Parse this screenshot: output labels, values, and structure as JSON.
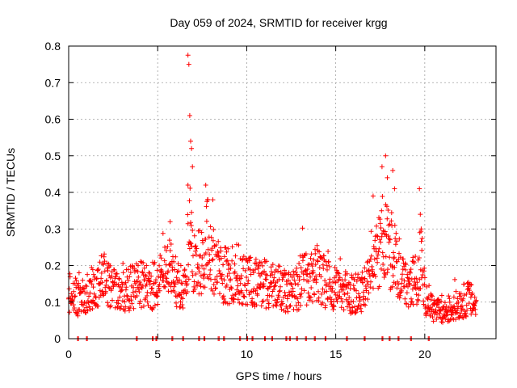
{
  "chart_data": {
    "type": "scatter",
    "title": "Day 059 of 2024, SRMTID for receiver krgg",
    "xlabel": "GPS time / hours",
    "ylabel": "SRMTID / TECUs",
    "xlim": [
      0,
      24
    ],
    "ylim": [
      0,
      0.8
    ],
    "xticks": [
      0,
      5,
      10,
      15,
      20
    ],
    "yticks": [
      0,
      0.1,
      0.2,
      0.3,
      0.4,
      0.5,
      0.6,
      0.7,
      0.8
    ],
    "grid": true,
    "marker": "+",
    "color": "#ff0000",
    "series": [
      {
        "name": "SRMTID",
        "trend": [
          [
            0.0,
            0.13
          ],
          [
            0.5,
            0.11
          ],
          [
            1.0,
            0.12
          ],
          [
            1.5,
            0.15
          ],
          [
            2.0,
            0.16
          ],
          [
            2.5,
            0.14
          ],
          [
            3.0,
            0.13
          ],
          [
            3.5,
            0.14
          ],
          [
            4.0,
            0.15
          ],
          [
            4.5,
            0.14
          ],
          [
            5.0,
            0.15
          ],
          [
            5.5,
            0.2
          ],
          [
            6.0,
            0.16
          ],
          [
            6.5,
            0.13
          ],
          [
            6.8,
            0.3
          ],
          [
            7.0,
            0.22
          ],
          [
            7.5,
            0.2
          ],
          [
            7.8,
            0.28
          ],
          [
            8.0,
            0.22
          ],
          [
            8.5,
            0.18
          ],
          [
            9.0,
            0.17
          ],
          [
            9.5,
            0.18
          ],
          [
            10.0,
            0.15
          ],
          [
            10.5,
            0.16
          ],
          [
            11.0,
            0.15
          ],
          [
            11.5,
            0.14
          ],
          [
            12.0,
            0.14
          ],
          [
            12.5,
            0.12
          ],
          [
            13.0,
            0.15
          ],
          [
            13.5,
            0.17
          ],
          [
            14.0,
            0.17
          ],
          [
            14.5,
            0.15
          ],
          [
            15.0,
            0.13
          ],
          [
            15.5,
            0.13
          ],
          [
            16.0,
            0.12
          ],
          [
            16.5,
            0.13
          ],
          [
            17.0,
            0.17
          ],
          [
            17.5,
            0.25
          ],
          [
            17.8,
            0.3
          ],
          [
            18.0,
            0.23
          ],
          [
            18.3,
            0.27
          ],
          [
            18.5,
            0.2
          ],
          [
            19.0,
            0.14
          ],
          [
            19.5,
            0.16
          ],
          [
            19.8,
            0.22
          ],
          [
            20.0,
            0.12
          ],
          [
            20.5,
            0.08
          ],
          [
            21.0,
            0.07
          ],
          [
            21.5,
            0.08
          ],
          [
            22.0,
            0.1
          ],
          [
            22.5,
            0.11
          ],
          [
            23.0,
            0.08
          ]
        ],
        "peaks": [
          [
            6.7,
            0.775
          ],
          [
            6.75,
            0.75
          ],
          [
            6.8,
            0.61
          ],
          [
            6.85,
            0.54
          ],
          [
            6.9,
            0.52
          ],
          [
            6.95,
            0.47
          ],
          [
            6.7,
            0.42
          ],
          [
            7.7,
            0.42
          ],
          [
            7.8,
            0.38
          ],
          [
            8.1,
            0.38
          ],
          [
            17.6,
            0.47
          ],
          [
            17.8,
            0.5
          ],
          [
            17.9,
            0.44
          ],
          [
            18.2,
            0.46
          ],
          [
            18.3,
            0.41
          ],
          [
            19.7,
            0.41
          ],
          [
            19.75,
            0.34
          ],
          [
            19.8,
            0.3
          ],
          [
            17.1,
            0.39
          ],
          [
            5.7,
            0.32
          ]
        ],
        "gaps": [
          0.5,
          1.0,
          3.8,
          4.7,
          4.9,
          5.8,
          6.4,
          7.3,
          7.6,
          8.4,
          8.7,
          9.6,
          10.0,
          10.3,
          11.0,
          11.4,
          12.2,
          12.4,
          12.8,
          13.3,
          13.8,
          14.4,
          15.6,
          16.6,
          17.6,
          18.0,
          18.5,
          19.2,
          20.2
        ],
        "start_hour": 0.0,
        "end_hour": 22.9,
        "sample_step_hours": 0.01667
      }
    ]
  }
}
